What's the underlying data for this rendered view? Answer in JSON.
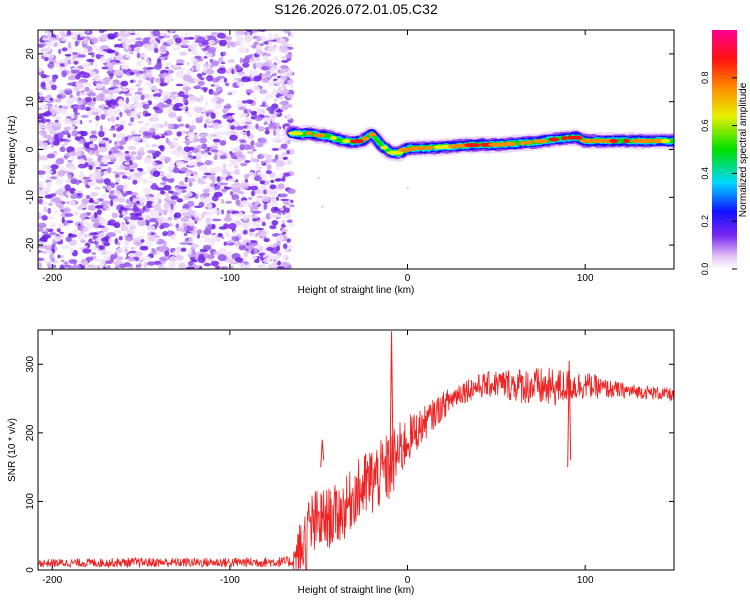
{
  "title": "S126.2026.072.01.05.C32",
  "chart_data": [
    {
      "type": "heatmap",
      "name": "spectrogram",
      "xlabel": "Height of straight line (km)",
      "ylabel": "Frequency (Hz)",
      "xlim": [
        -208,
        150
      ],
      "ylim": [
        -25,
        25
      ],
      "xticks": [
        -200,
        -100,
        0,
        100
      ],
      "yticks": [
        -20,
        -10,
        0,
        10,
        20
      ],
      "noise_region_x": [
        -208,
        -65
      ],
      "noise_level_range": [
        0.0,
        0.3
      ],
      "signal_ridge": {
        "x": [
          -65,
          -60,
          -55,
          -50,
          -45,
          -40,
          -35,
          -30,
          -25,
          -20,
          -15,
          -10,
          -5,
          0,
          10,
          20,
          30,
          40,
          50,
          60,
          70,
          80,
          90,
          95,
          100,
          110,
          120,
          130,
          140,
          150
        ],
        "freq": [
          3.5,
          3.2,
          3.4,
          3.0,
          2.8,
          2.2,
          1.8,
          1.6,
          2.0,
          3.2,
          1.0,
          -0.5,
          -0.8,
          0.2,
          0.3,
          0.5,
          0.8,
          1.0,
          1.0,
          1.2,
          1.5,
          2.0,
          2.4,
          2.6,
          1.8,
          1.8,
          1.8,
          1.8,
          1.8,
          1.8
        ],
        "amplitude": [
          0.6,
          0.7,
          0.8,
          0.85,
          0.8,
          0.7,
          0.75,
          0.9,
          0.9,
          0.8,
          0.6,
          0.5,
          0.6,
          0.85,
          0.8,
          0.75,
          0.8,
          0.95,
          0.85,
          0.8,
          0.85,
          0.9,
          0.95,
          0.9,
          0.8,
          0.85,
          0.9,
          0.85,
          0.8,
          0.75
        ]
      },
      "colorbar": {
        "label": "Normalized spectral amplitude",
        "range": [
          0,
          1
        ],
        "ticks": [
          "0.0",
          "0.2",
          "0.4",
          "0.6",
          "0.8"
        ],
        "colors": [
          "#ffffff",
          "#e6c8f5",
          "#7a28f0",
          "#1010ff",
          "#00d8ff",
          "#00e000",
          "#e8f000",
          "#ff8a00",
          "#ff1010",
          "#ff0090"
        ]
      }
    },
    {
      "type": "line",
      "name": "snr",
      "xlabel": "Height of straight line (km)",
      "ylabel": "SNR (10 * v/v)",
      "xlim": [
        -208,
        150
      ],
      "ylim": [
        0,
        350
      ],
      "xticks": [
        -200,
        -100,
        0,
        100
      ],
      "yticks": [
        0,
        100,
        200,
        300
      ],
      "color": "#ee2222",
      "envelope": {
        "x": [
          -208,
          -150,
          -100,
          -65,
          -60,
          -55,
          -50,
          -45,
          -40,
          -35,
          -30,
          -25,
          -20,
          -15,
          -10,
          -5,
          0,
          10,
          20,
          30,
          40,
          50,
          60,
          70,
          80,
          90,
          100,
          110,
          120,
          130,
          140,
          150
        ],
        "mean": [
          10,
          11,
          11,
          12,
          30,
          60,
          70,
          75,
          80,
          90,
          110,
          120,
          130,
          140,
          150,
          170,
          190,
          215,
          240,
          260,
          268,
          272,
          270,
          268,
          265,
          268,
          270,
          265,
          262,
          260,
          258,
          255
        ],
        "spread": [
          6,
          7,
          7,
          8,
          50,
          55,
          50,
          45,
          45,
          45,
          45,
          50,
          55,
          50,
          55,
          45,
          35,
          25,
          20,
          18,
          18,
          20,
          25,
          28,
          30,
          25,
          20,
          15,
          12,
          10,
          10,
          10
        ]
      },
      "spikes": [
        {
          "x": -9,
          "y": 348
        },
        {
          "x": -48,
          "y": 190
        },
        {
          "x": 91,
          "y": 305
        }
      ]
    }
  ]
}
